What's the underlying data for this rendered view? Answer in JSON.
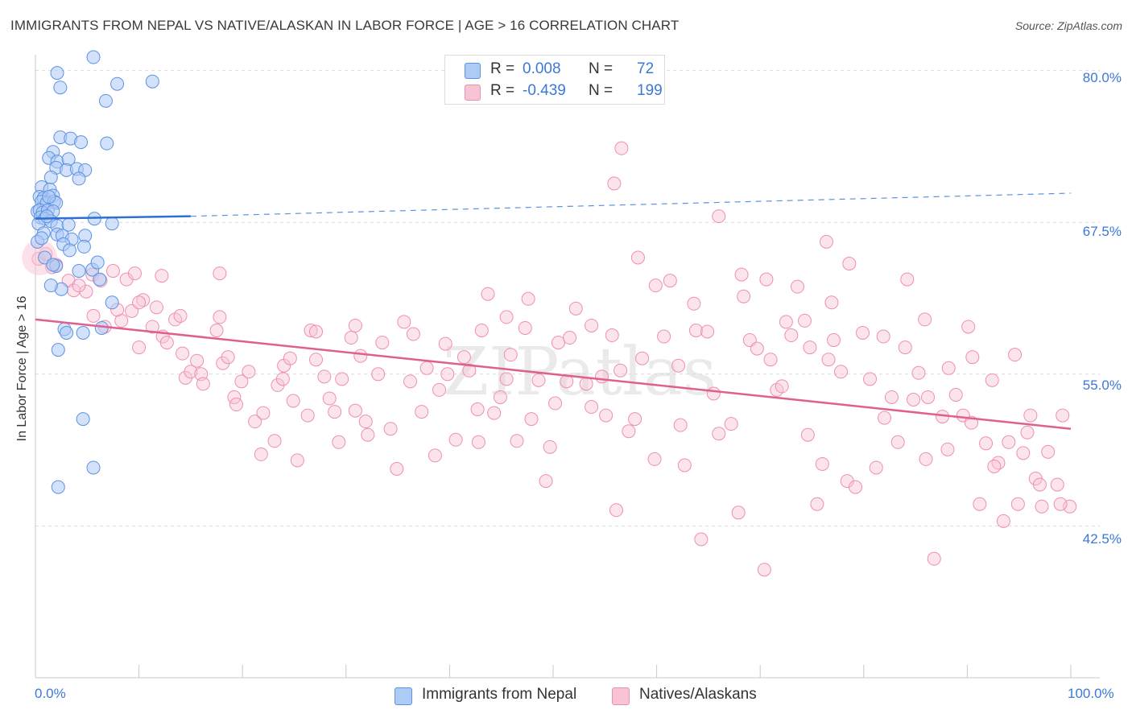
{
  "header": {
    "title": "IMMIGRANTS FROM NEPAL VS NATIVE/ALASKAN IN LABOR FORCE | AGE > 16 CORRELATION CHART",
    "source": "Source: ZipAtlas.com"
  },
  "watermark": "ZIPatlas",
  "colors": {
    "blue_fill": "#aecbf5",
    "blue_stroke": "#5b93e0",
    "blue_line": "#2f6fd1",
    "pink_fill": "#f9c3d6",
    "pink_stroke": "#ee8fb0",
    "pink_line": "#e0608c",
    "grid": "#dadada",
    "tick_text": "#3b78d8"
  },
  "legend": {
    "rows": [
      {
        "r_label": "R =",
        "r_value": "0.008",
        "n_label": "N =",
        "n_value": "72"
      },
      {
        "r_label": "R =",
        "r_value": "-0.439",
        "n_label": "N =",
        "n_value": "199"
      }
    ]
  },
  "bottom_legend": [
    "Immigrants from Nepal",
    "Natives/Alaskans"
  ],
  "chart_data": {
    "type": "scatter",
    "title": "IMMIGRANTS FROM NEPAL VS NATIVE/ALASKAN IN LABOR FORCE | AGE > 16 CORRELATION CHART",
    "xlabel": "",
    "ylabel": "In Labor Force | Age > 16",
    "xlim": [
      0,
      100
    ],
    "ylim": [
      30.0,
      81.3
    ],
    "x_tick_labels": [
      "0.0%",
      "100.0%"
    ],
    "y_ticks": [
      80.0,
      67.5,
      55.0,
      42.5
    ],
    "y_tick_labels": [
      "80.0%",
      "67.5%",
      "55.0%",
      "42.5%"
    ],
    "grid": true,
    "legend_position": "top-center",
    "series": [
      {
        "name": "Immigrants from Nepal",
        "color": "#5b93e0",
        "trend": {
          "x": [
            0,
            15
          ],
          "y": [
            67.8,
            68.0
          ],
          "dashed_extension": {
            "x": [
              15,
              100
            ],
            "y": [
              68.0,
              69.9
            ]
          }
        },
        "points": [
          [
            5.6,
            81.1
          ],
          [
            2.1,
            79.8
          ],
          [
            7.9,
            78.9
          ],
          [
            11.3,
            79.1
          ],
          [
            2.4,
            78.6
          ],
          [
            6.8,
            77.5
          ],
          [
            2.4,
            74.5
          ],
          [
            3.4,
            74.4
          ],
          [
            4.4,
            74.1
          ],
          [
            6.9,
            74.0
          ],
          [
            1.7,
            73.3
          ],
          [
            1.3,
            72.8
          ],
          [
            2.1,
            72.5
          ],
          [
            3.2,
            72.7
          ],
          [
            2.0,
            72.0
          ],
          [
            3.0,
            71.8
          ],
          [
            4.0,
            71.9
          ],
          [
            4.8,
            71.8
          ],
          [
            1.5,
            71.2
          ],
          [
            4.2,
            71.1
          ],
          [
            0.6,
            70.4
          ],
          [
            1.4,
            70.2
          ],
          [
            0.4,
            69.6
          ],
          [
            0.8,
            69.5
          ],
          [
            1.7,
            69.7
          ],
          [
            0.6,
            69.2
          ],
          [
            1.1,
            69.1
          ],
          [
            1.8,
            69.2
          ],
          [
            2.0,
            69.1
          ],
          [
            1.3,
            69.6
          ],
          [
            0.2,
            68.4
          ],
          [
            0.4,
            68.5
          ],
          [
            0.7,
            68.3
          ],
          [
            1.2,
            68.5
          ],
          [
            1.7,
            68.4
          ],
          [
            0.5,
            67.9
          ],
          [
            0.9,
            67.8
          ],
          [
            1.5,
            67.6
          ],
          [
            2.1,
            67.2
          ],
          [
            3.2,
            67.3
          ],
          [
            5.7,
            67.8
          ],
          [
            7.4,
            67.4
          ],
          [
            0.3,
            67.4
          ],
          [
            0.8,
            66.6
          ],
          [
            2.1,
            66.5
          ],
          [
            2.6,
            66.4
          ],
          [
            4.8,
            66.4
          ],
          [
            3.5,
            66.1
          ],
          [
            0.2,
            65.9
          ],
          [
            0.6,
            66.2
          ],
          [
            2.7,
            65.7
          ],
          [
            4.7,
            65.5
          ],
          [
            2.0,
            63.9
          ],
          [
            4.2,
            63.5
          ],
          [
            5.5,
            63.6
          ],
          [
            6.2,
            62.8
          ],
          [
            2.5,
            62.0
          ],
          [
            7.4,
            60.9
          ],
          [
            2.8,
            58.7
          ],
          [
            4.6,
            58.4
          ],
          [
            6.4,
            58.8
          ],
          [
            3.0,
            58.4
          ],
          [
            2.2,
            57.0
          ],
          [
            4.6,
            51.3
          ],
          [
            5.6,
            47.3
          ],
          [
            2.2,
            45.7
          ],
          [
            0.9,
            64.6
          ],
          [
            1.7,
            64.0
          ],
          [
            3.3,
            65.2
          ],
          [
            1.5,
            62.3
          ],
          [
            6.0,
            64.2
          ],
          [
            1.1,
            68.0
          ]
        ]
      },
      {
        "name": "Natives/Alaskans",
        "color": "#ee8fb0",
        "trend": {
          "x": [
            0,
            100
          ],
          "y": [
            59.5,
            50.5
          ]
        },
        "points": [
          [
            0.3,
            64.5
          ],
          [
            1.6,
            63.8
          ],
          [
            3.2,
            62.7
          ],
          [
            3.7,
            61.9
          ],
          [
            5.5,
            63.2
          ],
          [
            6.3,
            62.7
          ],
          [
            7.5,
            63.5
          ],
          [
            8.8,
            62.8
          ],
          [
            9.6,
            63.3
          ],
          [
            4.9,
            61.8
          ],
          [
            1.0,
            64.9
          ],
          [
            2.0,
            64.0
          ],
          [
            5.6,
            59.8
          ],
          [
            6.7,
            58.9
          ],
          [
            8.3,
            59.4
          ],
          [
            9.3,
            60.2
          ],
          [
            10.0,
            57.2
          ],
          [
            10.4,
            61.1
          ],
          [
            11.3,
            58.9
          ],
          [
            11.7,
            60.5
          ],
          [
            12.3,
            58.1
          ],
          [
            12.7,
            57.6
          ],
          [
            13.5,
            59.5
          ],
          [
            14.0,
            59.8
          ],
          [
            14.2,
            56.7
          ],
          [
            14.5,
            54.7
          ],
          [
            15.0,
            55.2
          ],
          [
            16.0,
            55.0
          ],
          [
            16.2,
            54.2
          ],
          [
            17.5,
            58.6
          ],
          [
            17.8,
            59.7
          ],
          [
            18.1,
            55.9
          ],
          [
            18.6,
            56.4
          ],
          [
            19.2,
            53.1
          ],
          [
            19.4,
            52.5
          ],
          [
            19.9,
            54.4
          ],
          [
            20.6,
            55.2
          ],
          [
            21.2,
            51.1
          ],
          [
            21.8,
            48.4
          ],
          [
            22.0,
            51.8
          ],
          [
            23.1,
            49.5
          ],
          [
            23.4,
            54.1
          ],
          [
            24.0,
            55.7
          ],
          [
            24.6,
            56.3
          ],
          [
            24.9,
            52.8
          ],
          [
            25.3,
            47.9
          ],
          [
            26.3,
            51.6
          ],
          [
            26.6,
            58.6
          ],
          [
            27.1,
            58.5
          ],
          [
            27.9,
            54.8
          ],
          [
            28.4,
            53.0
          ],
          [
            28.9,
            51.9
          ],
          [
            29.3,
            49.4
          ],
          [
            29.6,
            54.6
          ],
          [
            30.5,
            58.0
          ],
          [
            30.9,
            52.0
          ],
          [
            31.4,
            56.5
          ],
          [
            31.9,
            51.1
          ],
          [
            32.1,
            50.0
          ],
          [
            33.1,
            55.0
          ],
          [
            33.5,
            57.6
          ],
          [
            34.3,
            50.5
          ],
          [
            34.9,
            47.2
          ],
          [
            35.6,
            59.3
          ],
          [
            36.2,
            54.4
          ],
          [
            37.3,
            51.9
          ],
          [
            37.8,
            55.5
          ],
          [
            38.6,
            48.3
          ],
          [
            39.0,
            53.7
          ],
          [
            39.6,
            57.5
          ],
          [
            40.6,
            49.6
          ],
          [
            41.4,
            56.4
          ],
          [
            41.9,
            55.3
          ],
          [
            42.7,
            52.1
          ],
          [
            43.1,
            58.6
          ],
          [
            43.7,
            61.6
          ],
          [
            44.3,
            51.8
          ],
          [
            44.9,
            53.1
          ],
          [
            45.5,
            54.6
          ],
          [
            45.9,
            56.6
          ],
          [
            46.5,
            49.5
          ],
          [
            47.3,
            58.8
          ],
          [
            47.9,
            51.3
          ],
          [
            48.6,
            54.5
          ],
          [
            49.3,
            46.2
          ],
          [
            49.7,
            49.0
          ],
          [
            50.2,
            52.6
          ],
          [
            50.5,
            57.6
          ],
          [
            51.6,
            58.0
          ],
          [
            52.2,
            60.4
          ],
          [
            53.2,
            54.2
          ],
          [
            53.7,
            59.0
          ],
          [
            54.7,
            54.8
          ],
          [
            55.1,
            51.6
          ],
          [
            56.1,
            43.8
          ],
          [
            56.5,
            55.3
          ],
          [
            57.3,
            50.3
          ],
          [
            57.9,
            51.3
          ],
          [
            58.6,
            56.3
          ],
          [
            59.8,
            48.0
          ],
          [
            60.7,
            58.1
          ],
          [
            61.3,
            62.7
          ],
          [
            62.1,
            55.7
          ],
          [
            62.7,
            47.5
          ],
          [
            63.6,
            60.8
          ],
          [
            63.8,
            58.6
          ],
          [
            64.3,
            41.4
          ],
          [
            64.9,
            58.5
          ],
          [
            65.5,
            53.4
          ],
          [
            66.0,
            50.1
          ],
          [
            67.2,
            50.9
          ],
          [
            67.9,
            43.6
          ],
          [
            68.4,
            61.4
          ],
          [
            69.0,
            57.8
          ],
          [
            69.7,
            57.1
          ],
          [
            70.4,
            38.9
          ],
          [
            71.0,
            56.2
          ],
          [
            71.6,
            53.7
          ],
          [
            72.1,
            54.0
          ],
          [
            73.0,
            58.2
          ],
          [
            73.6,
            62.2
          ],
          [
            74.3,
            59.4
          ],
          [
            74.8,
            57.2
          ],
          [
            75.5,
            44.3
          ],
          [
            76.0,
            47.6
          ],
          [
            76.6,
            56.2
          ],
          [
            77.1,
            57.8
          ],
          [
            77.8,
            55.2
          ],
          [
            78.4,
            46.2
          ],
          [
            79.2,
            45.7
          ],
          [
            79.9,
            58.4
          ],
          [
            80.6,
            54.6
          ],
          [
            81.2,
            47.3
          ],
          [
            82.0,
            51.4
          ],
          [
            82.7,
            53.1
          ],
          [
            83.3,
            49.4
          ],
          [
            84.0,
            57.2
          ],
          [
            84.8,
            52.9
          ],
          [
            85.3,
            55.1
          ],
          [
            85.9,
            59.5
          ],
          [
            86.2,
            53.1
          ],
          [
            86.8,
            39.8
          ],
          [
            87.6,
            51.5
          ],
          [
            88.1,
            48.8
          ],
          [
            88.9,
            53.3
          ],
          [
            89.6,
            51.6
          ],
          [
            90.1,
            58.9
          ],
          [
            90.5,
            56.4
          ],
          [
            91.2,
            44.3
          ],
          [
            91.8,
            49.3
          ],
          [
            92.4,
            54.5
          ],
          [
            93.0,
            47.7
          ],
          [
            93.5,
            42.9
          ],
          [
            94.0,
            49.4
          ],
          [
            94.9,
            44.3
          ],
          [
            95.4,
            48.5
          ],
          [
            96.1,
            51.6
          ],
          [
            96.6,
            46.4
          ],
          [
            97.2,
            44.1
          ],
          [
            97.8,
            48.6
          ],
          [
            98.7,
            45.9
          ],
          [
            99.2,
            51.6
          ],
          [
            99.9,
            44.1
          ],
          [
            4.2,
            62.3
          ],
          [
            7.9,
            60.3
          ],
          [
            10.0,
            60.9
          ],
          [
            12.2,
            63.1
          ],
          [
            15.6,
            56.1
          ],
          [
            17.8,
            63.3
          ],
          [
            23.9,
            54.6
          ],
          [
            27.1,
            56.2
          ],
          [
            30.9,
            59.0
          ],
          [
            36.5,
            58.3
          ],
          [
            39.8,
            55.0
          ],
          [
            42.8,
            49.4
          ],
          [
            45.5,
            59.7
          ],
          [
            47.6,
            61.2
          ],
          [
            51.3,
            54.4
          ],
          [
            53.7,
            52.3
          ],
          [
            55.7,
            58.2
          ],
          [
            58.2,
            64.6
          ],
          [
            59.9,
            62.3
          ],
          [
            62.3,
            50.8
          ],
          [
            66.0,
            68.0
          ],
          [
            68.2,
            63.2
          ],
          [
            70.6,
            62.8
          ],
          [
            72.5,
            59.3
          ],
          [
            74.6,
            50.0
          ],
          [
            76.9,
            60.9
          ],
          [
            78.6,
            64.1
          ],
          [
            81.9,
            58.1
          ],
          [
            84.2,
            62.8
          ],
          [
            86.0,
            48.0
          ],
          [
            88.2,
            55.5
          ],
          [
            90.4,
            51.0
          ],
          [
            92.6,
            47.4
          ],
          [
            95.8,
            50.2
          ],
          [
            97.0,
            45.9
          ],
          [
            99.0,
            44.3
          ],
          [
            56.6,
            73.6
          ],
          [
            55.9,
            70.7
          ],
          [
            76.4,
            65.9
          ],
          [
            94.6,
            56.6
          ]
        ]
      }
    ]
  }
}
